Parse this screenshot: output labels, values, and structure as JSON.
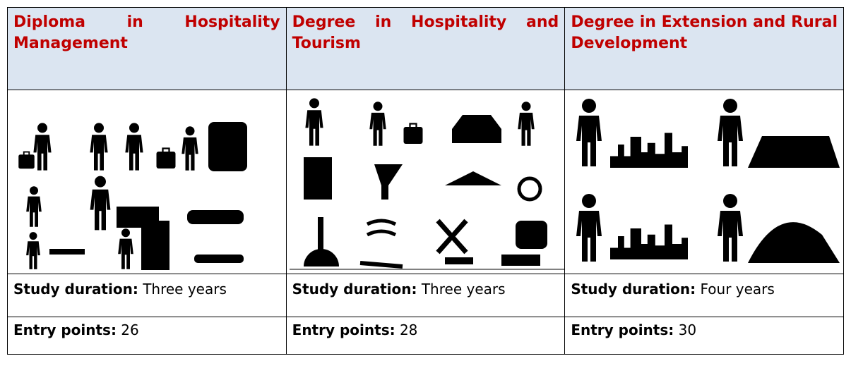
{
  "table": {
    "columns": [
      {
        "title": "Diploma in Hospitality Management",
        "duration_label": "Study duration:",
        "duration": "Three years",
        "entry_label": "Entry points:",
        "entry": 26
      },
      {
        "title": "Degree in Hospitality and Tourism",
        "duration_label": "Study duration:",
        "duration": "Three years",
        "entry_label": "Entry points:",
        "entry": 28
      },
      {
        "title": "Degree in Extension and Rural Development",
        "duration_label": "Study duration:",
        "duration": "Four years",
        "entry_label": "Entry points:",
        "entry": 30
      }
    ]
  }
}
